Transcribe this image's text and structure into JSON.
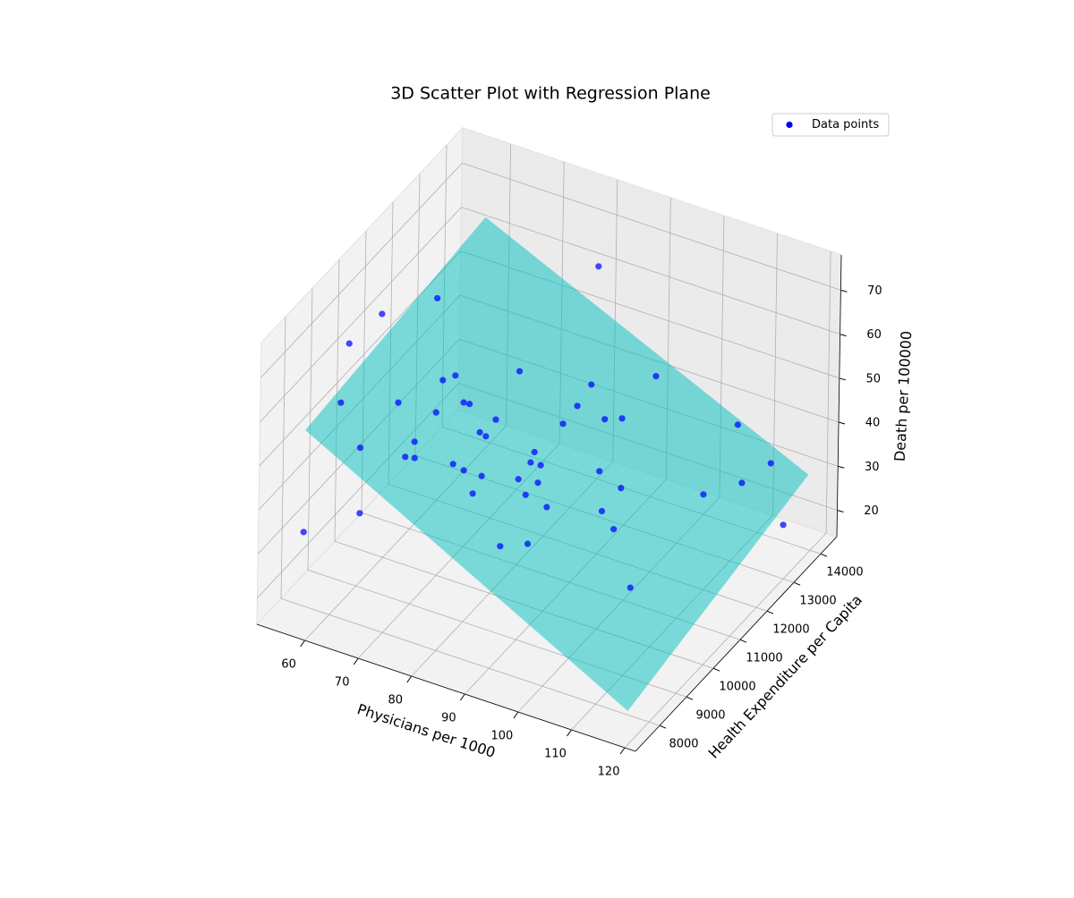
{
  "chart_data": {
    "type": "scatter3d",
    "title": "3D Scatter Plot with Regression Plane",
    "xlabel": "Physicians per 1000",
    "ylabel": "Health Expenditure per Capita",
    "zlabel": "Death per 100000",
    "xlim": [
      51,
      122
    ],
    "ylim": [
      7100,
      14600
    ],
    "zlim": [
      14,
      78
    ],
    "xticks": [
      60,
      70,
      80,
      90,
      100,
      110,
      120
    ],
    "yticks": [
      8000,
      9000,
      10000,
      11000,
      12000,
      13000,
      14000
    ],
    "zticks": [
      20,
      30,
      40,
      50,
      60,
      70
    ],
    "grid": true,
    "legend": "upper right",
    "series": [
      {
        "name": "Data points",
        "color": "#0000ff",
        "x": [
          78.6,
          54.6,
          53.6,
          59.4,
          75.4,
          58.0,
          64.5,
          67.5,
          68.5,
          71.9,
          72.7,
          69.7,
          77.1,
          84.7,
          91.3,
          85.1,
          89.4,
          91.3,
          85.1,
          64.3,
          69.9,
          70.2,
          71.4,
          76.4,
          77.5,
          84.4,
          84.9,
          86.3,
          76.3,
          78.1,
          80.6,
          85.1,
          87.6,
          81.2,
          87.3,
          93.5,
          97.5,
          90.8,
          97.4,
          100.4,
          89.1,
          92.0,
          107.6,
          107.4,
          105.0,
          112.2,
          110.7,
          119.2,
          57.6,
          68.0
        ],
        "y": [
          14225,
          10925,
          9905,
          12035,
          11945,
          8728,
          9583,
          10648,
          10918,
          10558,
          10618,
          9965,
          10730,
          12785,
          13888,
          12185,
          12358,
          12628,
          11653,
          8210,
          9125,
          8720,
          8833,
          10273,
          10280,
          10730,
          10490,
          10588,
          9298,
          9343,
          9515,
          9995,
          10228,
          9065,
          9830,
          11353,
          11368,
          9928,
          10678,
          10528,
          8533,
          8983,
          9733,
          12485,
          14233,
          14045,
          13265,
          13130,
          7475,
          7475
        ],
        "z": [
          60.2,
          61.1,
          60.6,
          59.4,
          49.9,
          56.6,
          53.7,
          53.1,
          52.8,
          50.4,
          50.0,
          51.1,
          47.5,
          45.2,
          42.6,
          44.4,
          42.0,
          41.2,
          43.8,
          52.3,
          50.0,
          49.3,
          48.8,
          47.3,
          46.8,
          43.1,
          42.5,
          41.8,
          46.4,
          45.4,
          44.0,
          42.0,
          40.7,
          43.2,
          40.4,
          38.4,
          36.1,
          38.4,
          35.3,
          33.4,
          37.9,
          36.7,
          28.2,
          31.4,
          34.9,
          30.3,
          30.3,
          25.1,
          35.2,
          43.7
        ]
      }
    ],
    "surface": {
      "color": "#00bfbf",
      "x": [
        57,
        118
      ],
      "y": [
        7600,
        14300
      ],
      "z": [
        [
          57.3,
          62.1
        ],
        [
          18.3,
          28.4
        ]
      ]
    }
  }
}
